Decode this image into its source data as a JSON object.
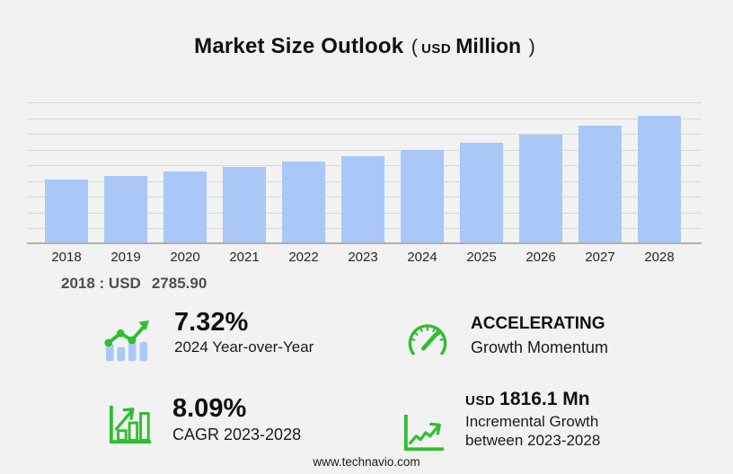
{
  "header": {
    "title": "Market Size Outlook",
    "paren_open": "(",
    "currency": "USD",
    "unit": "Million",
    "paren_close": ")"
  },
  "chart_data": {
    "type": "bar",
    "title": "Market Size Outlook (USD Million)",
    "unit": "USD Million",
    "categories": [
      "2018",
      "2019",
      "2020",
      "2021",
      "2022",
      "2023",
      "2024",
      "2025",
      "2026",
      "2027",
      "2028"
    ],
    "values": [
      2785.9,
      2955,
      3140,
      3345,
      3575,
      3818.6,
      4098.1,
      4430,
      4795,
      5200,
      5634.7
    ],
    "labeled_points": {
      "2018": 2785.9
    },
    "derived": {
      "yoy_2024_pct": 7.32,
      "cagr_2023_2028_pct": 8.09,
      "incremental_growth_2023_2028_mn": 1816.1
    },
    "xlabel": "",
    "ylabel": "",
    "ylim": [
      0,
      6300
    ],
    "y_ticks_labeled": false,
    "grid": true,
    "gridline_count": 9,
    "legend": false,
    "bar_color": "#a9c8f8"
  },
  "annotation": {
    "label": "2018 : USD",
    "value": "2785.90"
  },
  "stats": {
    "yoy": {
      "value": "7.32%",
      "label": "2024 Year-over-Year"
    },
    "momentum": {
      "value": "ACCELERATING",
      "label": "Growth Momentum"
    },
    "cagr": {
      "value": "8.09%",
      "label": "CAGR 2023-2028"
    },
    "incremental": {
      "currency": "USD",
      "value": "1816.1 Mn",
      "label_line1": "Incremental Growth",
      "label_line2": "between 2023-2028"
    }
  },
  "footer": {
    "url": "www.technavio.com"
  },
  "colors": {
    "background": "#f2f2f3",
    "bar_blue": "#a9c8f8",
    "accent_green": "#2fbe2f",
    "gridline": "#d9d9d9",
    "axis": "#b0b0b0",
    "heading_text": "#111111",
    "annotation_text": "#4d4d4d"
  }
}
